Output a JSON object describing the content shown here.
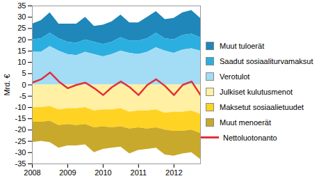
{
  "chart_data": {
    "type": "area",
    "stacked": true,
    "y_label": "Mrd. €",
    "x": [
      2008,
      2008.25,
      2008.5,
      2008.75,
      2009,
      2009.25,
      2009.5,
      2009.75,
      2010,
      2010.25,
      2010.5,
      2010.75,
      2011,
      2011.25,
      2011.5,
      2011.75,
      2012,
      2012.25,
      2012.5,
      2012.75
    ],
    "xlim": [
      2008,
      2012.75
    ],
    "xticks": [
      2008,
      2009,
      2010,
      2011,
      2012
    ],
    "ylim": [
      -35,
      35
    ],
    "yticks": [
      -35,
      -30,
      -25,
      -20,
      -15,
      -10,
      -5,
      0,
      5,
      10,
      15,
      20,
      25,
      30,
      35
    ],
    "grid": false,
    "legend": "right",
    "series": [
      {
        "name": "Muut tuloerät",
        "color": "#1f87b9",
        "type": "area",
        "values": [
          7,
          8,
          9,
          6.5,
          8,
          8.5,
          10,
          7,
          8.5,
          9,
          10,
          8,
          8,
          9.5,
          9.5,
          8.5,
          9.5,
          10,
          10.5,
          8.5
        ]
      },
      {
        "name": "Saadut sosiaaliturvamaksut",
        "color": "#2bafe0",
        "type": "area",
        "values": [
          5.5,
          6,
          6,
          5.5,
          5.5,
          5.5,
          5.5,
          5.5,
          5.5,
          5.5,
          6,
          5.5,
          6,
          6,
          6.5,
          5.5,
          6,
          6.5,
          6.5,
          6
        ]
      },
      {
        "name": "Verotulot",
        "color": "#a3dcf5",
        "type": "area",
        "values": [
          14.5,
          14.5,
          17,
          15,
          13.5,
          13,
          14.5,
          13.5,
          12.5,
          13.5,
          15,
          14,
          13.5,
          14.5,
          16.5,
          15,
          14,
          15.5,
          16,
          15
        ]
      },
      {
        "name": "Julkiset kulutusmenot",
        "color": "#fff0a3",
        "type": "area",
        "values": [
          -10,
          -10,
          -9.5,
          -11,
          -10.5,
          -10.5,
          -10,
          -11.5,
          -11,
          -11,
          -10.5,
          -12,
          -11.5,
          -11.5,
          -11,
          -12.5,
          -12,
          -12,
          -11.5,
          -13
        ]
      },
      {
        "name": "Maksetut sosiaalietuudet",
        "color": "#ffd324",
        "type": "area",
        "values": [
          -6.5,
          -6.5,
          -6.5,
          -7,
          -7,
          -7.5,
          -7.5,
          -7.5,
          -7.5,
          -8,
          -8,
          -7.5,
          -7.5,
          -8,
          -8,
          -7.5,
          -8.5,
          -8.5,
          -8.5,
          -8.5
        ]
      },
      {
        "name": "Muut menoerät",
        "color": "#c9a92b",
        "type": "area",
        "values": [
          -9,
          -8.5,
          -9.5,
          -10,
          -9.5,
          -9,
          -9,
          -11,
          -10,
          -9,
          -9,
          -11,
          -10,
          -9,
          -9,
          -11,
          -11,
          -10,
          -10,
          -11.5
        ]
      },
      {
        "name": "Nettoluotonanto",
        "color": "#e0313b",
        "type": "line",
        "values": [
          1,
          2.5,
          5.5,
          1.5,
          -1.5,
          0,
          1,
          -1.5,
          -4.5,
          -1,
          1.5,
          -1,
          -4.5,
          0,
          2.5,
          -0.5,
          -4.5,
          0,
          1.5,
          -4.5
        ]
      }
    ]
  }
}
